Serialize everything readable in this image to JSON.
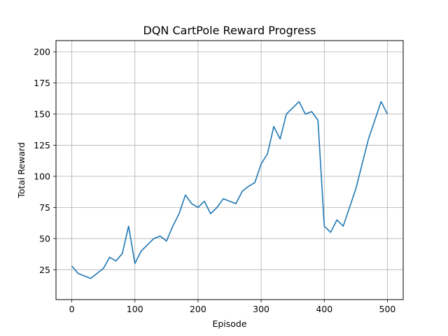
{
  "chart_data": {
    "type": "line",
    "title": "DQN CartPole Reward Progress",
    "xlabel": "Episode",
    "ylabel": "Total Reward",
    "xlim": [
      -25,
      525
    ],
    "ylim": [
      1,
      209
    ],
    "xticks": [
      0,
      100,
      200,
      300,
      400,
      500
    ],
    "yticks": [
      25,
      50,
      75,
      100,
      125,
      150,
      175,
      200
    ],
    "grid": true,
    "line_color": "#1f77b4",
    "series": [
      {
        "name": "",
        "x": [
          0,
          10,
          20,
          30,
          40,
          50,
          60,
          70,
          80,
          90,
          100,
          110,
          120,
          130,
          140,
          150,
          160,
          170,
          180,
          190,
          200,
          210,
          220,
          230,
          240,
          250,
          260,
          270,
          280,
          290,
          300,
          310,
          320,
          330,
          340,
          350,
          360,
          370,
          380,
          390,
          400,
          410,
          420,
          430,
          440,
          450,
          460,
          470,
          480,
          490,
          500
        ],
        "values": [
          28,
          22,
          20,
          18,
          22,
          26,
          35,
          32,
          38,
          60,
          30,
          40,
          45,
          50,
          52,
          48,
          60,
          70,
          85,
          78,
          75,
          80,
          70,
          75,
          82,
          80,
          78,
          88,
          92,
          95,
          110,
          118,
          140,
          130,
          150,
          155,
          160,
          150,
          152,
          145,
          60,
          55,
          65,
          60,
          75,
          90,
          110,
          130,
          145,
          160,
          150
        ]
      }
    ]
  }
}
